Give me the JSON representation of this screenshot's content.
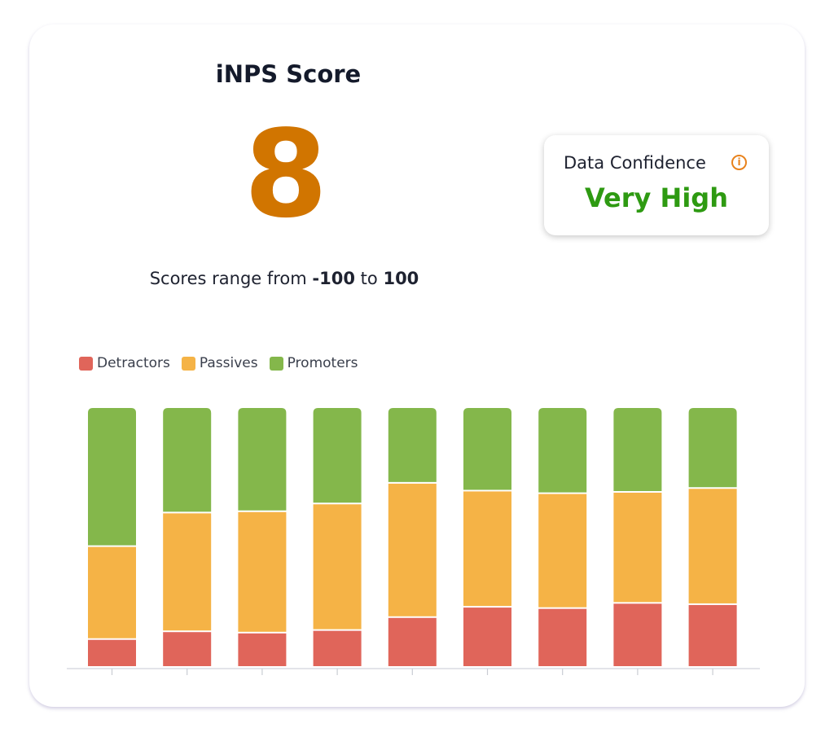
{
  "card": {
    "title": "iNPS Score",
    "score": "8",
    "range": {
      "prefix": "Scores range from",
      "min": "-100",
      "connector": "to",
      "max": "100"
    }
  },
  "confidence": {
    "label": "Data Confidence",
    "info_icon": "info-icon",
    "info_glyph": "i",
    "value": "Very High"
  },
  "colors": {
    "score": "#d17500",
    "confidence_value": "#2e9a12",
    "detractors": "#e0655a",
    "passives": "#f5b346",
    "promoters": "#84b74b",
    "info_icon": "#e8821c"
  },
  "chart_data": {
    "type": "bar",
    "stacked": true,
    "normalized": true,
    "legend_position": "top-left",
    "grid": false,
    "categories": [
      "",
      "",
      "",
      "",
      "",
      "",
      "",
      "",
      ""
    ],
    "ylim": [
      0,
      100
    ],
    "series": [
      {
        "name": "Detractors",
        "color": "#e0655a",
        "values": [
          10.5,
          13.5,
          13,
          14,
          19,
          23,
          22.5,
          24.5,
          24
        ]
      },
      {
        "name": "Passives",
        "color": "#f5b346",
        "values": [
          36,
          46,
          47,
          49,
          52,
          45,
          44.5,
          43,
          45
        ]
      },
      {
        "name": "Promoters",
        "color": "#84b74b",
        "values": [
          53.5,
          40.5,
          40,
          37,
          29,
          32,
          33,
          32.5,
          31
        ]
      }
    ]
  }
}
